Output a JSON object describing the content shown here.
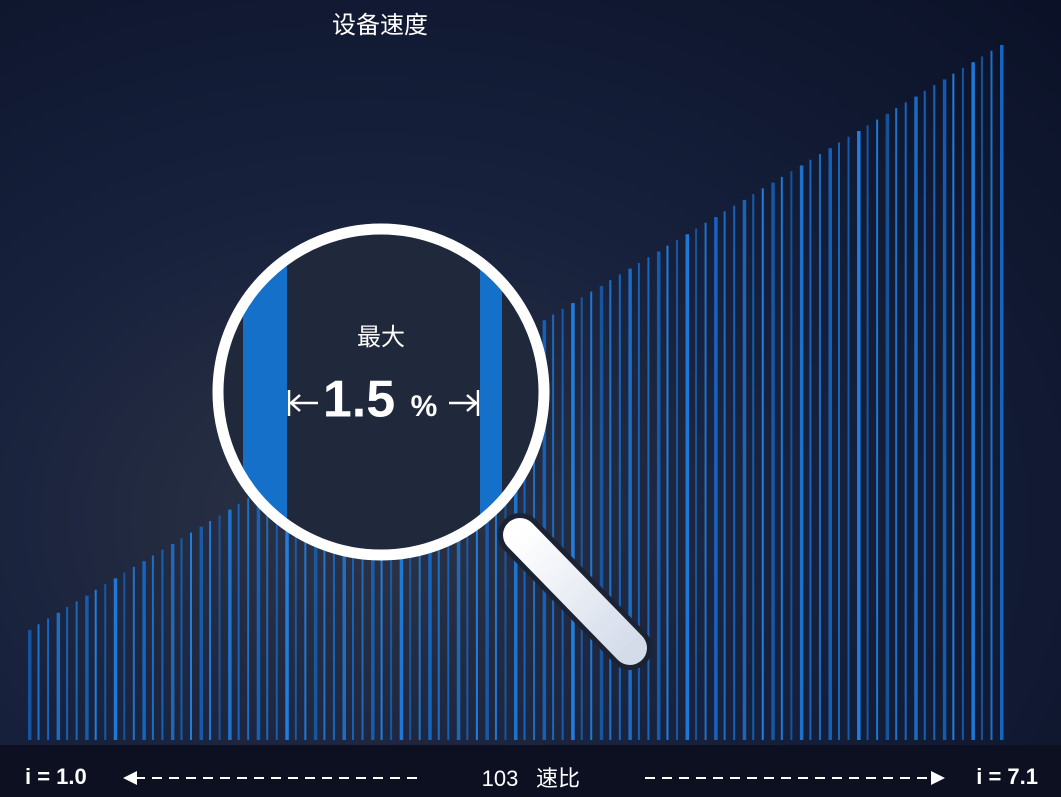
{
  "header": {
    "title": "设备速度"
  },
  "magnifier": {
    "label": "最大",
    "value": "1.5",
    "unit": "%"
  },
  "axis": {
    "start": "i = 1.0",
    "end": "i = 7.1",
    "count": 103,
    "label": "速比"
  }
}
